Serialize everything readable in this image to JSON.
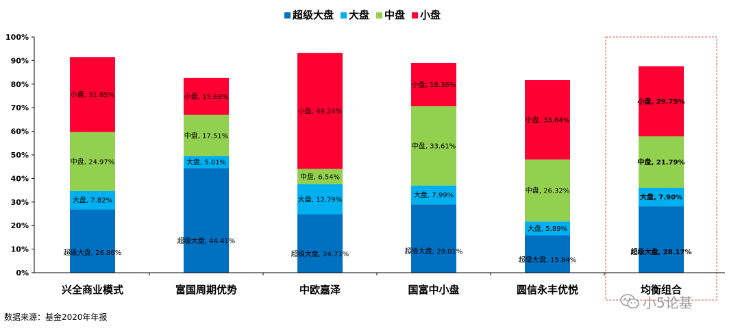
{
  "chart_data": {
    "type": "bar",
    "stacked": true,
    "categories": [
      "兴全商业模式",
      "富国周期优势",
      "中欧嘉泽",
      "国富中小盘",
      "圆信永丰优悦",
      "均衡组合"
    ],
    "series": [
      {
        "name": "超级大盘",
        "color": "#0070C0",
        "values": [
          26.86,
          44.41,
          24.71,
          29.01,
          15.84,
          28.17
        ]
      },
      {
        "name": "大盘",
        "color": "#00B0F0",
        "values": [
          7.82,
          5.01,
          12.79,
          7.99,
          5.89,
          7.9
        ]
      },
      {
        "name": "中盘",
        "color": "#92D050",
        "values": [
          24.97,
          17.51,
          6.54,
          33.61,
          26.32,
          21.79
        ]
      },
      {
        "name": "小盘",
        "color": "#FF0033",
        "values": [
          31.85,
          15.68,
          49.24,
          18.36,
          33.64,
          29.75
        ]
      }
    ],
    "data_labels": [
      [
        "超级大盘, 26.86%",
        "大盘, 7.82%",
        "中盘, 24.97%",
        "小盘, 31.85%"
      ],
      [
        "超级大盘, 44.41%",
        "大盘, 5.01%",
        "中盘, 17.51%",
        "小盘, 15.68%"
      ],
      [
        "超级大盘, 24.71%",
        "大盘, 12.79%",
        "中盘, 6.54%",
        "小盘, 49.24%"
      ],
      [
        "超级大盘, 29.01%",
        "大盘, 7.99%",
        "中盘, 33.61%",
        "小盘, 18.36%"
      ],
      [
        "超级大盘, 15.84%",
        "大盘, 5.89%",
        "中盘, 26.32%",
        "小盘, 33.64%"
      ],
      [
        "超级大盘, 28.17%",
        "大盘, 7.90%",
        "中盘, 21.79%",
        "小盘, 29.75%"
      ]
    ],
    "bold_label_category": "均衡组合",
    "highlighted_category": "均衡组合",
    "highlight_color": "#E05050",
    "yticks": [
      "0%",
      "10%",
      "20%",
      "30%",
      "40%",
      "50%",
      "60%",
      "70%",
      "80%",
      "90%",
      "100%"
    ],
    "ylim": [
      0,
      100
    ],
    "grid": false,
    "legend_position": "top-center",
    "title": "",
    "xlabel": "",
    "ylabel": ""
  },
  "footer": {
    "source": "数据来源：基金2020年年报"
  },
  "watermark": {
    "text": "小5论基",
    "icon": "wechat-icon"
  }
}
